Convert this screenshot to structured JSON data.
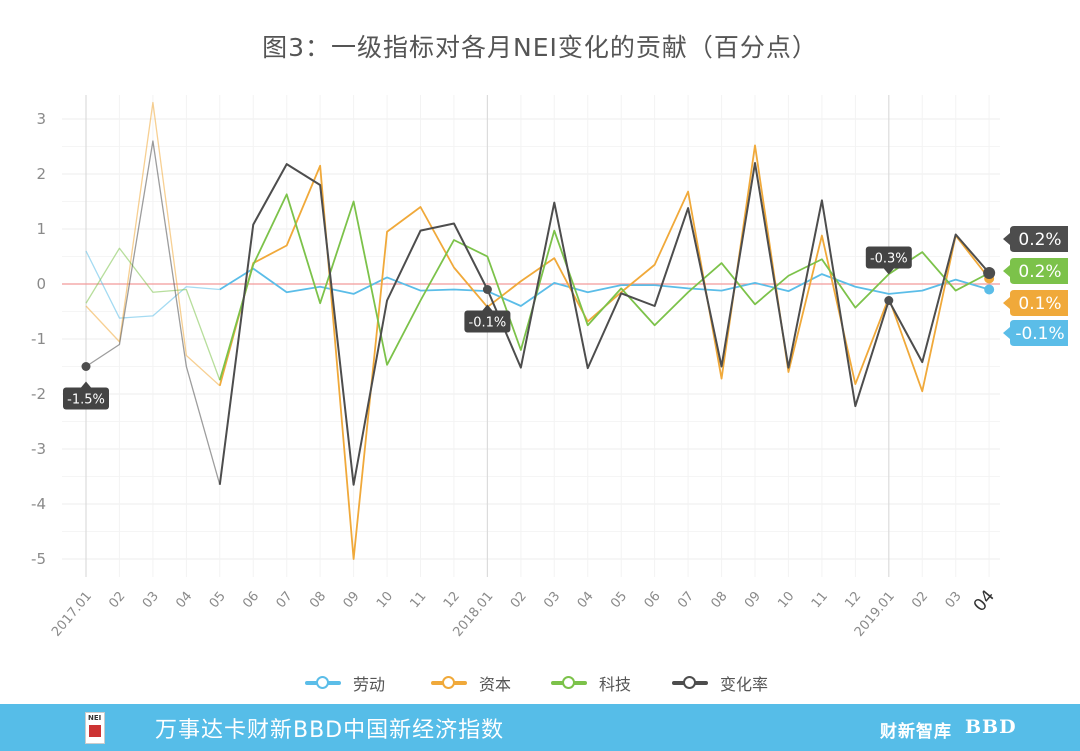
{
  "title": "图3：一级指标对各月NEI变化的贡献（百分点）",
  "chart_data": {
    "type": "line",
    "title": "图3：一级指标对各月NEI变化的贡献（百分点）",
    "xlabel": "",
    "ylabel": "",
    "ylim": [
      -5.45,
      3.5
    ],
    "yticks": [
      3,
      2,
      1,
      0,
      -1,
      -2,
      -3,
      -4,
      -5
    ],
    "grid": true,
    "legend_position": "bottom",
    "categories": [
      "2017.01",
      "02",
      "03",
      "04",
      "05",
      "06",
      "07",
      "08",
      "09",
      "10",
      "11",
      "12",
      "2018.01",
      "02",
      "03",
      "04",
      "05",
      "06",
      "07",
      "08",
      "09",
      "10",
      "11",
      "12",
      "2019.01",
      "02",
      "03",
      "04"
    ],
    "series": [
      {
        "name": "劳动",
        "color": "#5bbde8",
        "values": [
          0.6,
          -0.62,
          -0.58,
          -0.05,
          -0.1,
          0.28,
          -0.15,
          -0.05,
          -0.18,
          0.12,
          -0.12,
          -0.1,
          -0.13,
          -0.4,
          0.02,
          -0.15,
          -0.02,
          -0.02,
          -0.08,
          -0.12,
          0.02,
          -0.13,
          0.18,
          -0.05,
          -0.18,
          -0.12,
          0.08,
          -0.1
        ]
      },
      {
        "name": "资本",
        "color": "#f0a93a",
        "values": [
          -0.4,
          -1.05,
          3.3,
          -1.3,
          -1.85,
          0.38,
          0.7,
          2.15,
          -5.0,
          0.95,
          1.4,
          0.3,
          -0.42,
          0.05,
          0.47,
          -0.68,
          -0.15,
          0.35,
          1.68,
          -1.72,
          2.52,
          -1.6,
          0.88,
          -1.82,
          -0.25,
          -1.95,
          0.88,
          0.1
        ]
      },
      {
        "name": "科技",
        "color": "#7cc24a",
        "values": [
          -0.35,
          0.65,
          -0.15,
          -0.1,
          -1.75,
          0.35,
          1.63,
          -0.35,
          1.5,
          -1.47,
          -0.3,
          0.8,
          0.5,
          -1.2,
          0.97,
          -0.75,
          -0.08,
          -0.75,
          -0.15,
          0.38,
          -0.37,
          0.15,
          0.45,
          -0.43,
          0.18,
          0.58,
          -0.12,
          0.2
        ]
      },
      {
        "name": "变化率",
        "color": "#4d4d4d",
        "values": [
          -1.5,
          -1.1,
          2.6,
          -1.5,
          -3.65,
          1.08,
          2.18,
          1.8,
          -3.65,
          -0.3,
          0.97,
          1.1,
          -0.1,
          -1.52,
          1.48,
          -1.53,
          -0.17,
          -0.4,
          1.38,
          -1.5,
          2.2,
          -1.52,
          1.52,
          -2.22,
          -0.3,
          -1.42,
          0.9,
          0.2
        ]
      }
    ],
    "callouts": [
      {
        "index": 0,
        "label": "-1.5%"
      },
      {
        "index": 12,
        "label": "-0.1%"
      },
      {
        "index": 24,
        "label": "-0.3%"
      }
    ],
    "end_labels": [
      {
        "series": "变化率",
        "label": "0.2%"
      },
      {
        "series": "科技",
        "label": "0.2%"
      },
      {
        "series": "资本",
        "label": "0.1%"
      },
      {
        "series": "劳动",
        "label": "-0.1%"
      }
    ]
  },
  "legend": [
    {
      "label": "劳动",
      "color": "#5bbde8"
    },
    {
      "label": "资本",
      "color": "#f0a93a"
    },
    {
      "label": "科技",
      "color": "#7cc24a"
    },
    {
      "label": "变化率",
      "color": "#4d4d4d"
    }
  ],
  "footer": {
    "title": "万事达卡财新BBD中国新经济指数",
    "logo_text": "NEI",
    "brand_1": "财新智库",
    "brand_2": "BBD",
    "background": "#56bde8"
  }
}
